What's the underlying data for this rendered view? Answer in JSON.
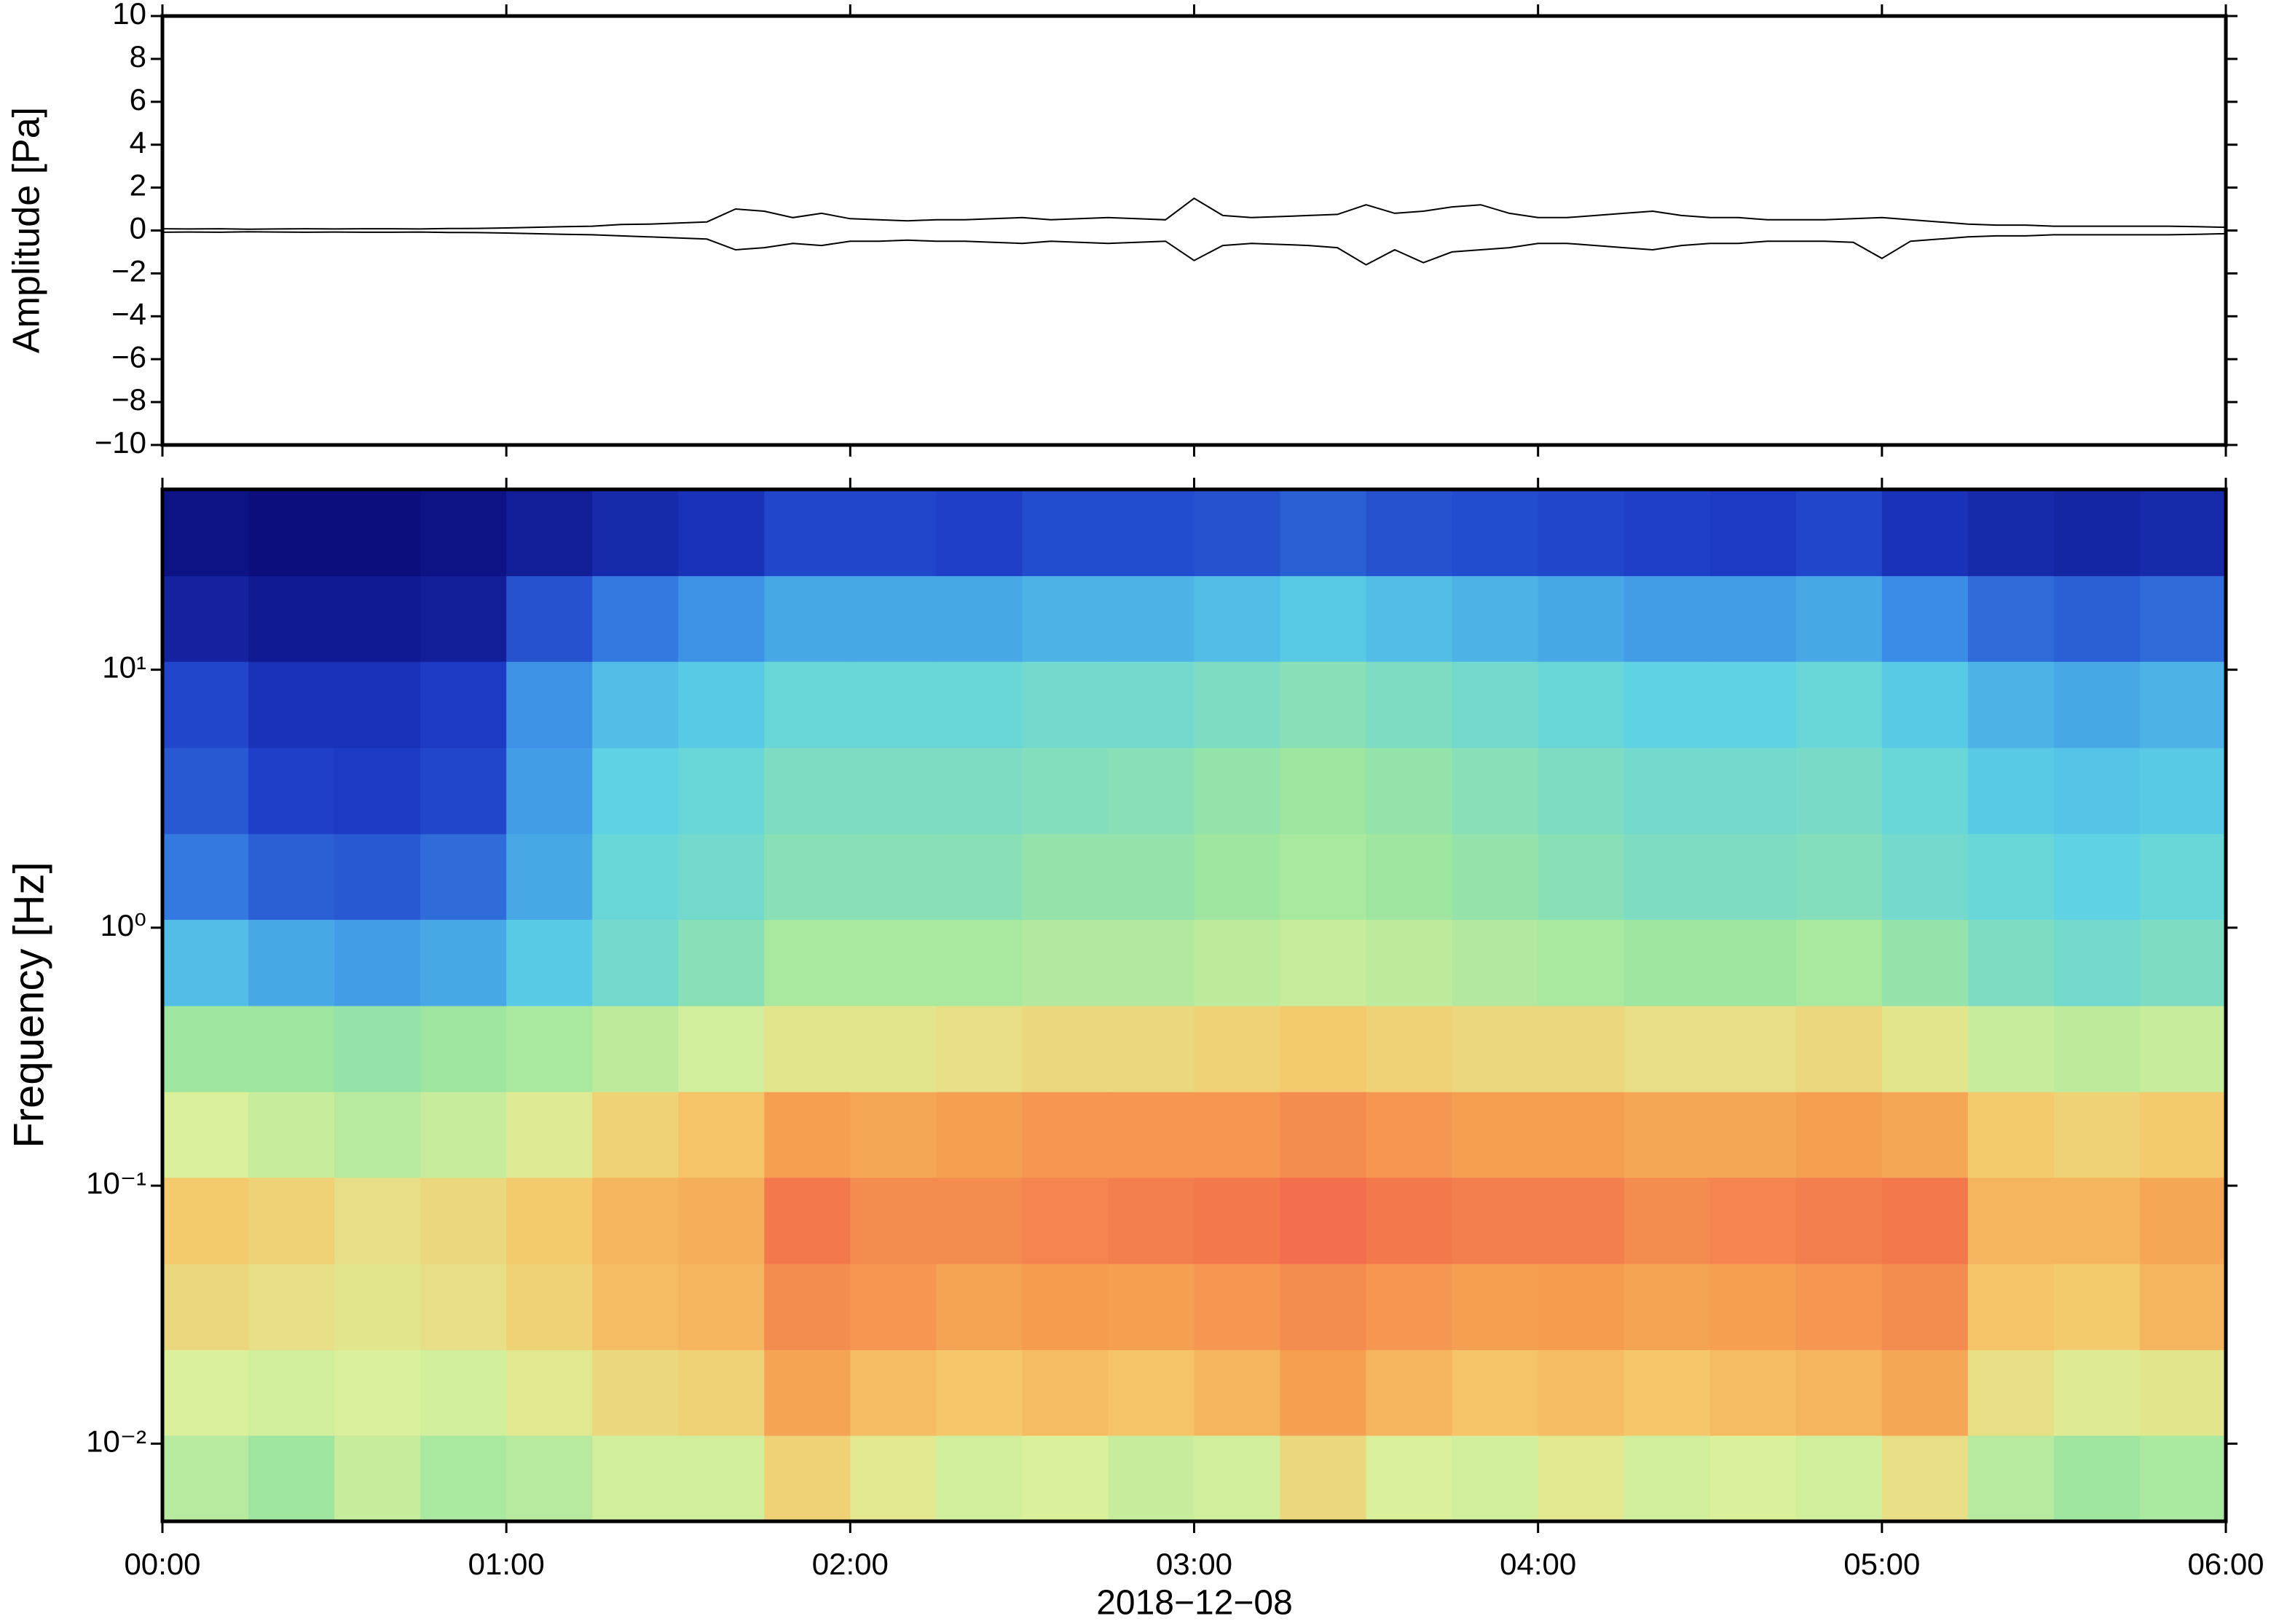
{
  "chart_data": [
    {
      "type": "band-line",
      "ylabel": "Amplitude [Pa]",
      "x": [
        0,
        5,
        10,
        15,
        20,
        25,
        30,
        35,
        40,
        45,
        50,
        55,
        60,
        65,
        70,
        75,
        80,
        85,
        90,
        95,
        100,
        105,
        110,
        115,
        120,
        125,
        130,
        135,
        140,
        145,
        150,
        155,
        160,
        165,
        170,
        175,
        180,
        185,
        190,
        195,
        200,
        205,
        210,
        215,
        220,
        225,
        230,
        235,
        240,
        245,
        250,
        255,
        260,
        265,
        270,
        275,
        280,
        285,
        290,
        295,
        300,
        305,
        310,
        315,
        320,
        325,
        330,
        335,
        340,
        345,
        350,
        355,
        360
      ],
      "series": [
        {
          "color": "#000000",
          "values": [
            0.08,
            0.07,
            0.08,
            0.06,
            0.07,
            0.08,
            0.07,
            0.08,
            0.08,
            0.07,
            0.09,
            0.1,
            0.12,
            0.15,
            0.18,
            0.2,
            0.28,
            0.3,
            0.35,
            0.4,
            1.0,
            0.9,
            0.6,
            0.8,
            0.55,
            0.5,
            0.45,
            0.5,
            0.5,
            0.55,
            0.6,
            0.5,
            0.55,
            0.6,
            0.55,
            0.5,
            1.5,
            0.7,
            0.6,
            0.65,
            0.7,
            0.75,
            1.2,
            0.8,
            0.9,
            1.1,
            1.2,
            0.8,
            0.6,
            0.6,
            0.7,
            0.8,
            0.9,
            0.7,
            0.6,
            0.6,
            0.5,
            0.5,
            0.5,
            0.55,
            0.6,
            0.5,
            0.4,
            0.3,
            0.25,
            0.25,
            0.2,
            0.2,
            0.2,
            0.2,
            0.2,
            0.18,
            0.15
          ]
        },
        {
          "color": "#000000",
          "values": [
            -0.08,
            -0.07,
            -0.08,
            -0.06,
            -0.07,
            -0.08,
            -0.07,
            -0.08,
            -0.08,
            -0.07,
            -0.09,
            -0.1,
            -0.12,
            -0.15,
            -0.18,
            -0.2,
            -0.25,
            -0.3,
            -0.35,
            -0.4,
            -0.9,
            -0.8,
            -0.6,
            -0.7,
            -0.5,
            -0.5,
            -0.45,
            -0.5,
            -0.5,
            -0.55,
            -0.6,
            -0.5,
            -0.55,
            -0.6,
            -0.55,
            -0.5,
            -1.4,
            -0.7,
            -0.6,
            -0.65,
            -0.7,
            -0.8,
            -1.6,
            -0.9,
            -1.5,
            -1.0,
            -0.9,
            -0.8,
            -0.6,
            -0.6,
            -0.7,
            -0.8,
            -0.9,
            -0.7,
            -0.6,
            -0.6,
            -0.5,
            -0.5,
            -0.5,
            -0.55,
            -1.3,
            -0.5,
            -0.4,
            -0.3,
            -0.25,
            -0.25,
            -0.2,
            -0.2,
            -0.2,
            -0.2,
            -0.2,
            -0.18,
            -0.15
          ]
        }
      ],
      "xlim": [
        0,
        360
      ],
      "xticks": [
        0,
        60,
        120,
        180,
        240,
        300,
        360
      ],
      "ylim": [
        -10,
        10
      ],
      "yticks": [
        {
          "value": -10,
          "label": "−10"
        },
        {
          "value": -8,
          "label": "−8"
        },
        {
          "value": -6,
          "label": "−6"
        },
        {
          "value": -4,
          "label": "−4"
        },
        {
          "value": -2,
          "label": "−2"
        },
        0,
        2,
        4,
        6,
        8,
        10
      ]
    },
    {
      "type": "heatmap",
      "ylabel": "Frequency [Hz]",
      "xlabel": "2018−12−08",
      "ylog": true,
      "xedges": [
        0,
        15,
        30,
        45,
        60,
        75,
        90,
        105,
        120,
        135,
        150,
        165,
        180,
        195,
        210,
        225,
        240,
        255,
        270,
        285,
        300,
        315,
        330,
        345,
        360
      ],
      "yedges": [
        0.005,
        0.0108,
        0.0232,
        0.05,
        0.108,
        0.232,
        0.5,
        1.08,
        2.32,
        5,
        10.8,
        23.2,
        50
      ],
      "colormap": [
        "#0a0a78",
        "#1e3cc8",
        "#3a8ce6",
        "#5cd2e6",
        "#9ee6a0",
        "#dcf09a",
        "#f5c76a",
        "#f59a50",
        "#f0504a"
      ],
      "values": [
        [
          0.55,
          0.5,
          0.58,
          0.52,
          0.55,
          0.6,
          0.6,
          0.72,
          0.65,
          0.6,
          0.62,
          0.58,
          0.6,
          0.7,
          0.62,
          0.6,
          0.65,
          0.6,
          0.62,
          0.6,
          0.68,
          0.55,
          0.5,
          0.52
        ],
        [
          0.62,
          0.6,
          0.62,
          0.6,
          0.65,
          0.7,
          0.72,
          0.85,
          0.78,
          0.75,
          0.78,
          0.76,
          0.8,
          0.86,
          0.8,
          0.76,
          0.78,
          0.75,
          0.78,
          0.8,
          0.84,
          0.68,
          0.64,
          0.66
        ],
        [
          0.7,
          0.68,
          0.66,
          0.68,
          0.72,
          0.78,
          0.8,
          0.9,
          0.88,
          0.85,
          0.87,
          0.86,
          0.88,
          0.9,
          0.88,
          0.86,
          0.87,
          0.85,
          0.86,
          0.88,
          0.9,
          0.76,
          0.74,
          0.8
        ],
        [
          0.74,
          0.72,
          0.68,
          0.7,
          0.74,
          0.8,
          0.82,
          0.93,
          0.9,
          0.9,
          0.91,
          0.92,
          0.93,
          0.95,
          0.93,
          0.92,
          0.92,
          0.9,
          0.91,
          0.92,
          0.93,
          0.8,
          0.8,
          0.84
        ],
        [
          0.62,
          0.58,
          0.55,
          0.58,
          0.64,
          0.72,
          0.76,
          0.86,
          0.84,
          0.86,
          0.88,
          0.88,
          0.88,
          0.9,
          0.88,
          0.86,
          0.86,
          0.84,
          0.84,
          0.86,
          0.84,
          0.74,
          0.72,
          0.74
        ],
        [
          0.5,
          0.5,
          0.48,
          0.5,
          0.52,
          0.56,
          0.6,
          0.66,
          0.66,
          0.68,
          0.7,
          0.7,
          0.72,
          0.74,
          0.72,
          0.7,
          0.7,
          0.68,
          0.68,
          0.7,
          0.66,
          0.58,
          0.56,
          0.58
        ],
        [
          0.34,
          0.3,
          0.28,
          0.3,
          0.36,
          0.42,
          0.46,
          0.52,
          0.52,
          0.52,
          0.54,
          0.54,
          0.56,
          0.58,
          0.56,
          0.54,
          0.52,
          0.5,
          0.5,
          0.52,
          0.48,
          0.44,
          0.42,
          0.44
        ],
        [
          0.22,
          0.18,
          0.17,
          0.2,
          0.3,
          0.4,
          0.42,
          0.46,
          0.46,
          0.46,
          0.48,
          0.48,
          0.5,
          0.52,
          0.5,
          0.48,
          0.46,
          0.44,
          0.44,
          0.45,
          0.42,
          0.4,
          0.38,
          0.4
        ],
        [
          0.17,
          0.13,
          0.12,
          0.14,
          0.28,
          0.38,
          0.4,
          0.44,
          0.44,
          0.44,
          0.45,
          0.46,
          0.48,
          0.5,
          0.48,
          0.46,
          0.44,
          0.42,
          0.42,
          0.43,
          0.4,
          0.36,
          0.35,
          0.36
        ],
        [
          0.14,
          0.1,
          0.1,
          0.12,
          0.26,
          0.34,
          0.36,
          0.4,
          0.4,
          0.4,
          0.42,
          0.42,
          0.44,
          0.46,
          0.44,
          0.42,
          0.4,
          0.38,
          0.38,
          0.4,
          0.36,
          0.32,
          0.3,
          0.32
        ],
        [
          0.06,
          0.04,
          0.04,
          0.05,
          0.16,
          0.22,
          0.26,
          0.3,
          0.3,
          0.3,
          0.32,
          0.32,
          0.34,
          0.36,
          0.34,
          0.32,
          0.3,
          0.28,
          0.28,
          0.3,
          0.25,
          0.2,
          0.18,
          0.2
        ],
        [
          0.02,
          0.01,
          0.01,
          0.02,
          0.05,
          0.08,
          0.1,
          0.14,
          0.14,
          0.13,
          0.15,
          0.15,
          0.16,
          0.18,
          0.16,
          0.15,
          0.14,
          0.13,
          0.12,
          0.14,
          0.1,
          0.08,
          0.07,
          0.08
        ]
      ],
      "xlim": [
        0,
        360
      ],
      "xticks": [
        {
          "value": 0,
          "label": "00:00"
        },
        {
          "value": 60,
          "label": "01:00"
        },
        {
          "value": 120,
          "label": "02:00"
        },
        {
          "value": 180,
          "label": "03:00"
        },
        {
          "value": 240,
          "label": "04:00"
        },
        {
          "value": 300,
          "label": "05:00"
        },
        {
          "value": 360,
          "label": "06:00"
        }
      ],
      "ylim": [
        0.005,
        50
      ],
      "yticks": [
        {
          "value": 0.01,
          "label": "10⁻²"
        },
        {
          "value": 0.1,
          "label": "10⁻¹"
        },
        {
          "value": 1,
          "label": "10⁰"
        },
        {
          "value": 10,
          "label": "10¹"
        }
      ]
    }
  ]
}
